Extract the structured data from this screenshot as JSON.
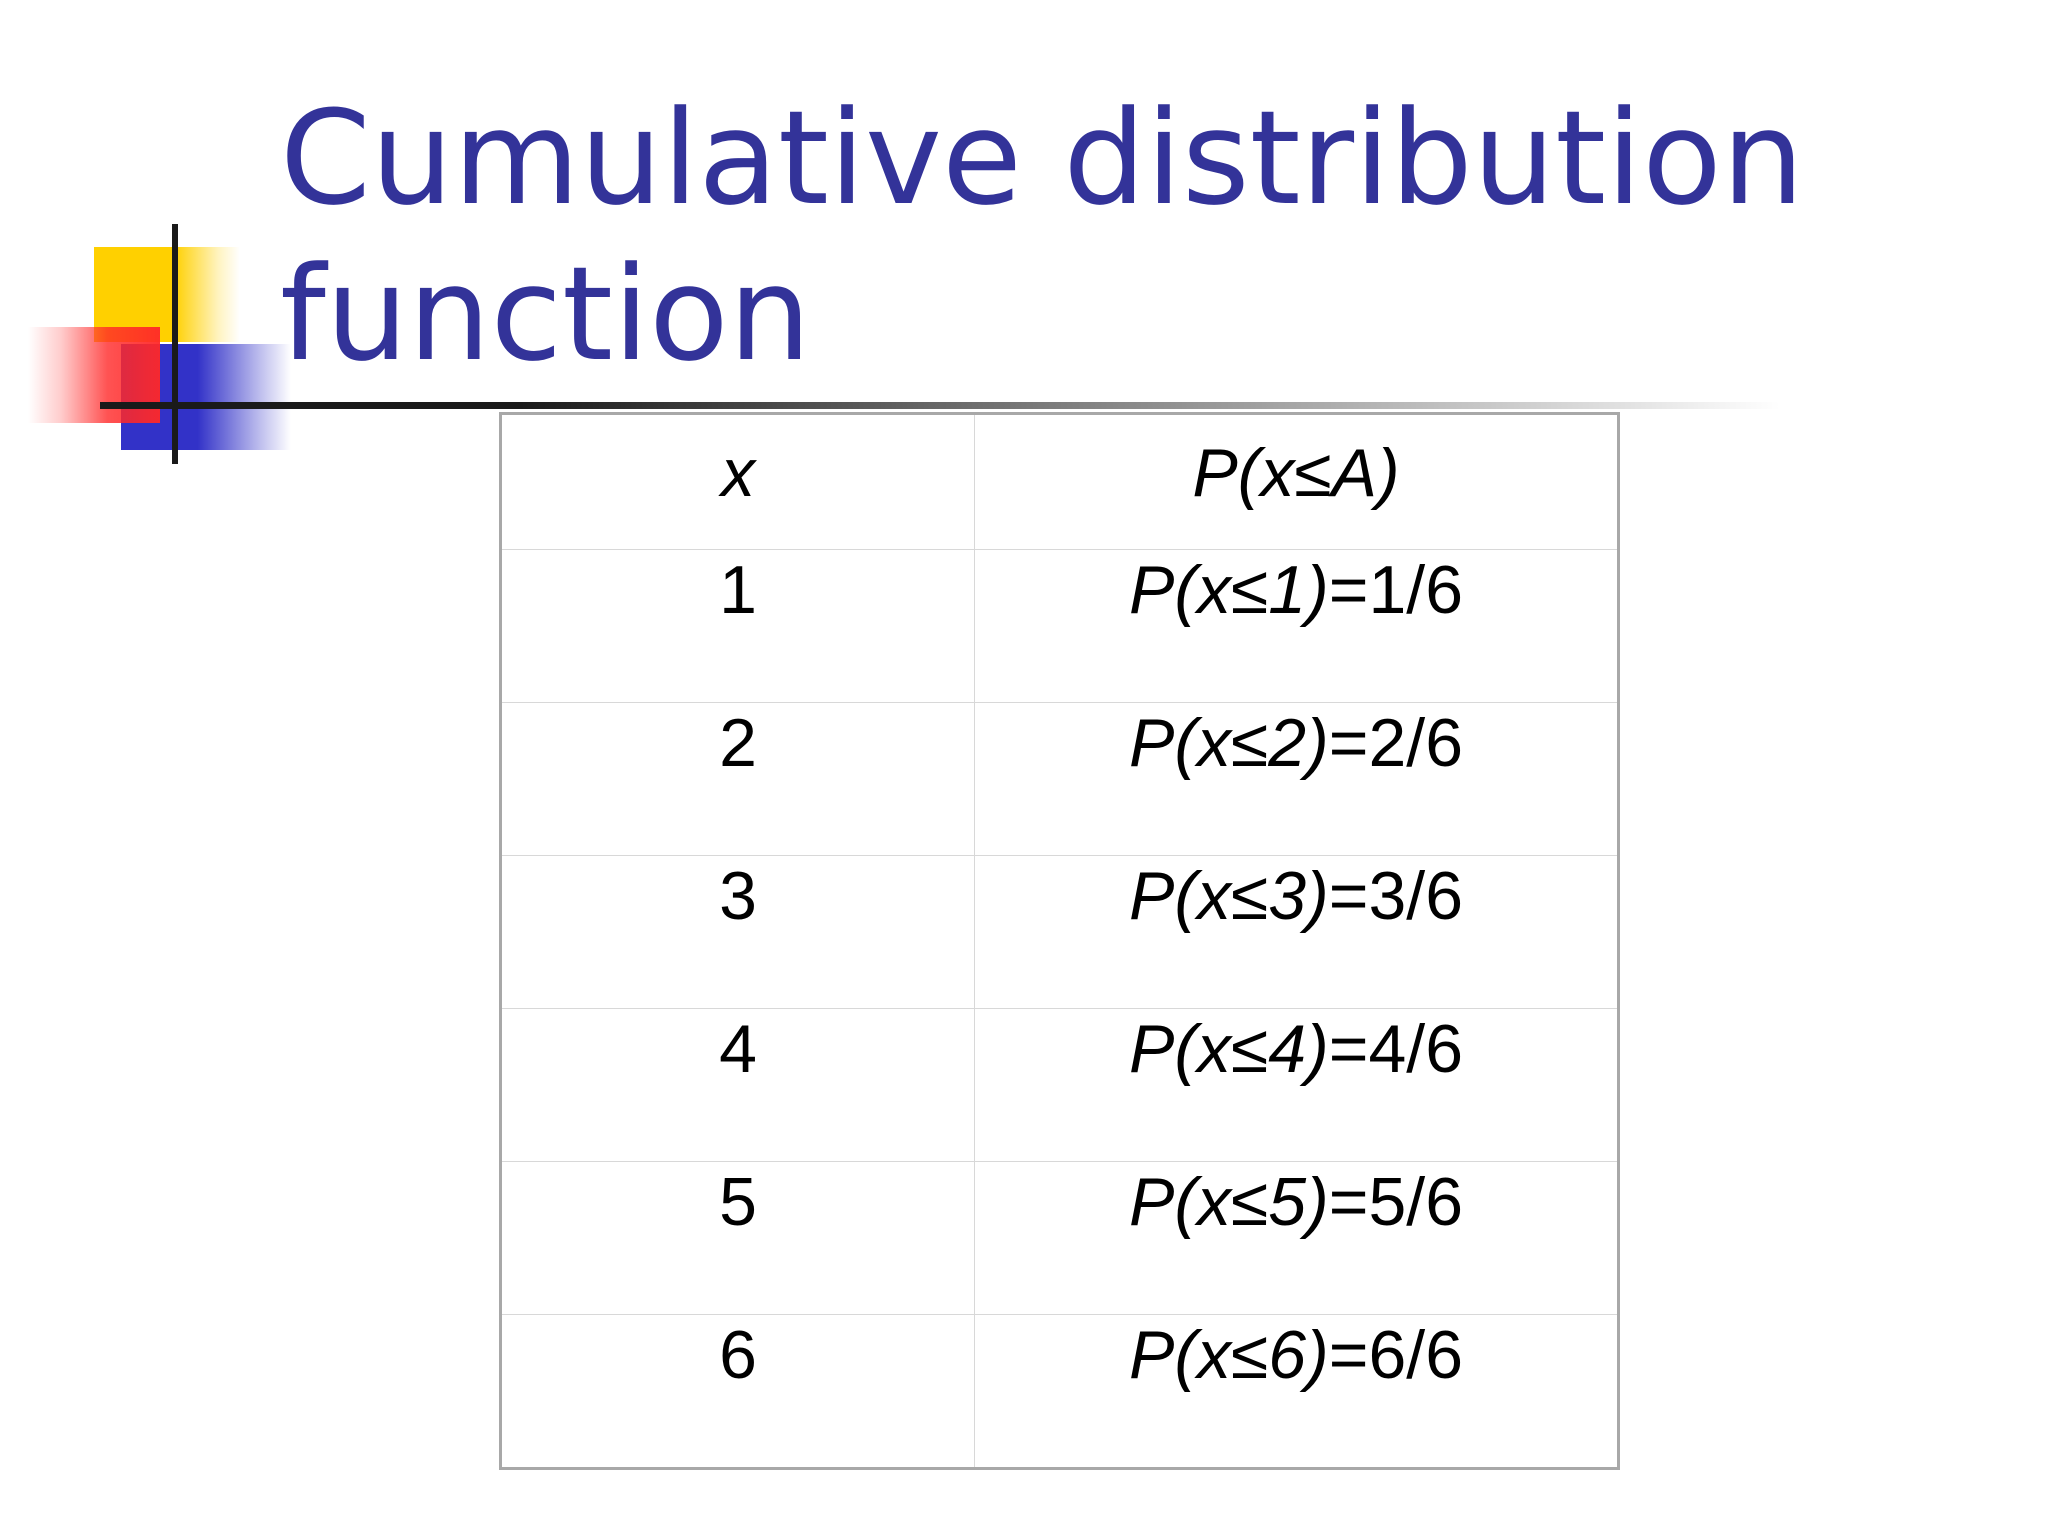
{
  "title": {
    "line1": "Cumulative distribution",
    "line2": "function"
  },
  "colors": {
    "title": "#333399",
    "deco_yellow": "#ffd000",
    "deco_blue": "#3232c8",
    "deco_red": "#ff2828",
    "deco_line": "#1a1a1a"
  },
  "table": {
    "headers": {
      "x": "x",
      "prob": "P(x≤A)"
    },
    "rows": [
      {
        "x": "1",
        "prob_lhs": "P(x≤1)",
        "prob_rhs": "=1/6"
      },
      {
        "x": "2",
        "prob_lhs": "P(x≤2)",
        "prob_rhs": "=2/6"
      },
      {
        "x": "3",
        "prob_lhs": "P(x≤3)",
        "prob_rhs": "=3/6"
      },
      {
        "x": "4",
        "prob_lhs": "P(x≤4)",
        "prob_rhs": "=4/6"
      },
      {
        "x": "5",
        "prob_lhs": "P(x≤5)",
        "prob_rhs": "=5/6"
      },
      {
        "x": "6",
        "prob_lhs": "P(x≤6)",
        "prob_rhs": "=6/6"
      }
    ]
  }
}
